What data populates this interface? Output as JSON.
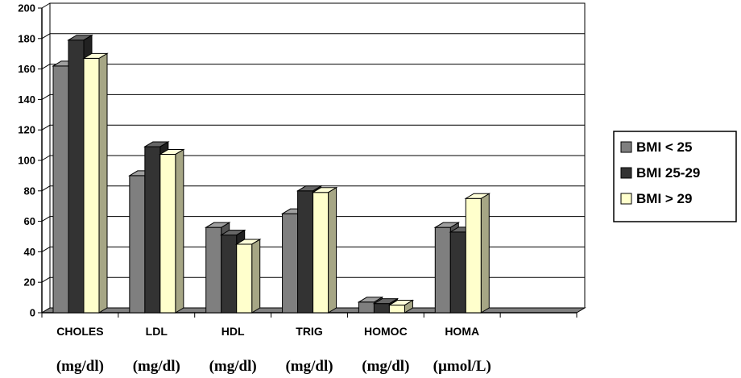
{
  "chart_data": {
    "type": "bar",
    "categories": [
      "CHOLES",
      "LDL",
      "HDL",
      "TRIG",
      "HOMOC",
      "HOMA"
    ],
    "units": [
      "(mg/dl)",
      "(mg/dl)",
      "(mg/dl)",
      "(mg/dl)",
      "(mg/dl)",
      "(µmol/L)"
    ],
    "series": [
      {
        "name": "BMI < 25",
        "color": "#7f7f7f",
        "values": [
          162,
          90,
          56,
          65,
          7,
          56
        ]
      },
      {
        "name": "BMI 25-29",
        "color": "#333333",
        "values": [
          179,
          109,
          51,
          80,
          6,
          53
        ]
      },
      {
        "name": "BMI > 29",
        "color": "#ffffcc",
        "values": [
          167,
          104,
          45,
          79,
          5,
          75
        ]
      }
    ],
    "y_ticks": [
      0,
      20,
      40,
      60,
      80,
      100,
      120,
      140,
      160,
      180,
      200
    ],
    "ylim": [
      0,
      200
    ],
    "grid": true,
    "legend": "right",
    "three_d": true
  }
}
